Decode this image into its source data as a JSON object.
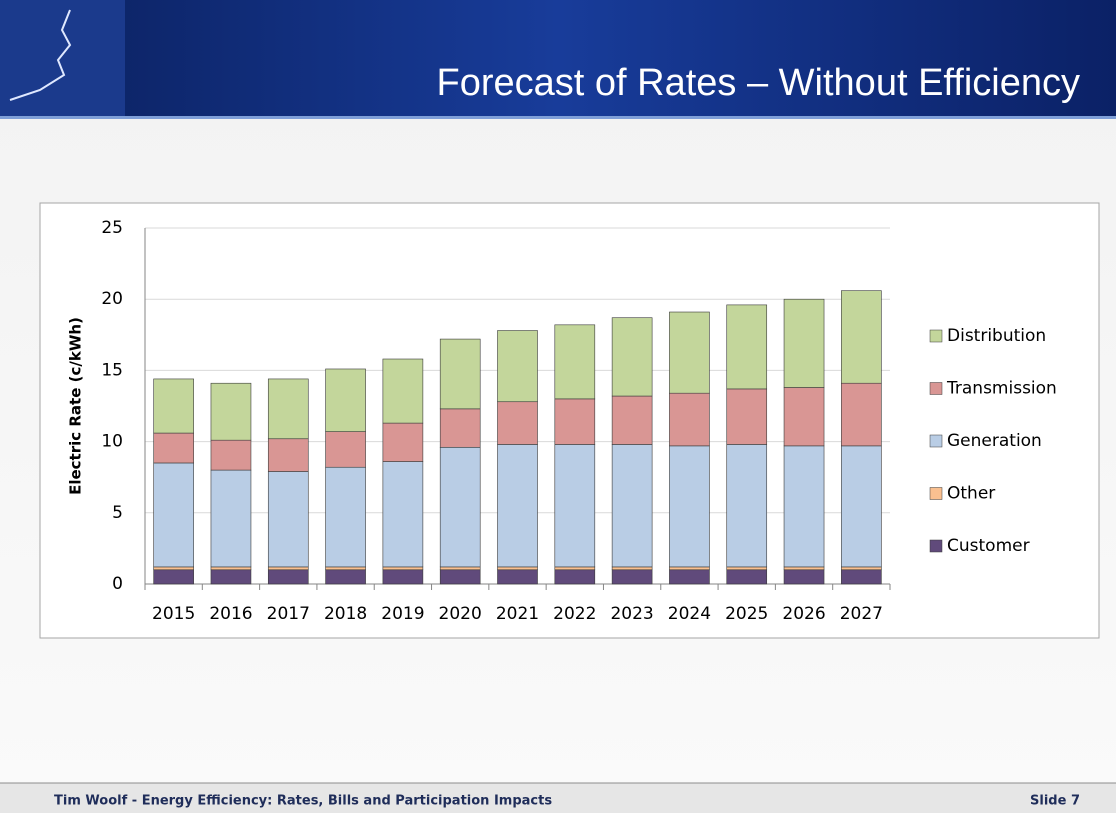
{
  "slide": {
    "title": "Forecast of Rates – Without Efficiency",
    "footer": "Tim Woolf - Energy Efficiency: Rates, Bills and Participation Impacts",
    "slide_number": "Slide 7"
  },
  "chart_data": {
    "type": "stacked_bar",
    "y_label": "Electric Rate  (c/kWh)",
    "categories": [
      "2015",
      "2016",
      "2017",
      "2018",
      "2019",
      "2020",
      "2021",
      "2022",
      "2023",
      "2024",
      "2025",
      "2026",
      "2027"
    ],
    "series": [
      {
        "name": "Customer",
        "color": "#604a7b",
        "values": [
          1.0,
          1.0,
          1.0,
          1.0,
          1.0,
          1.0,
          1.0,
          1.0,
          1.0,
          1.0,
          1.0,
          1.0,
          1.0
        ]
      },
      {
        "name": "Other",
        "color": "#fac090",
        "values": [
          0.2,
          0.2,
          0.2,
          0.2,
          0.2,
          0.2,
          0.2,
          0.2,
          0.2,
          0.2,
          0.2,
          0.2,
          0.2
        ]
      },
      {
        "name": "Generation",
        "color": "#b9cde5",
        "values": [
          7.3,
          6.8,
          6.7,
          7.0,
          7.4,
          8.4,
          8.6,
          8.6,
          8.6,
          8.5,
          8.6,
          8.5,
          8.5
        ]
      },
      {
        "name": "Transmission",
        "color": "#d99694",
        "values": [
          2.1,
          2.1,
          2.3,
          2.5,
          2.7,
          2.7,
          3.0,
          3.2,
          3.4,
          3.7,
          3.9,
          4.1,
          4.4
        ]
      },
      {
        "name": "Distribution",
        "color": "#c3d69b",
        "values": [
          3.8,
          4.0,
          4.2,
          4.4,
          4.5,
          4.9,
          5.0,
          5.2,
          5.5,
          5.7,
          5.9,
          6.2,
          6.5
        ]
      }
    ],
    "ylim": [
      0,
      25
    ],
    "yticks": [
      0,
      5,
      10,
      15,
      20,
      25
    ],
    "grid": true,
    "legend": "right"
  }
}
